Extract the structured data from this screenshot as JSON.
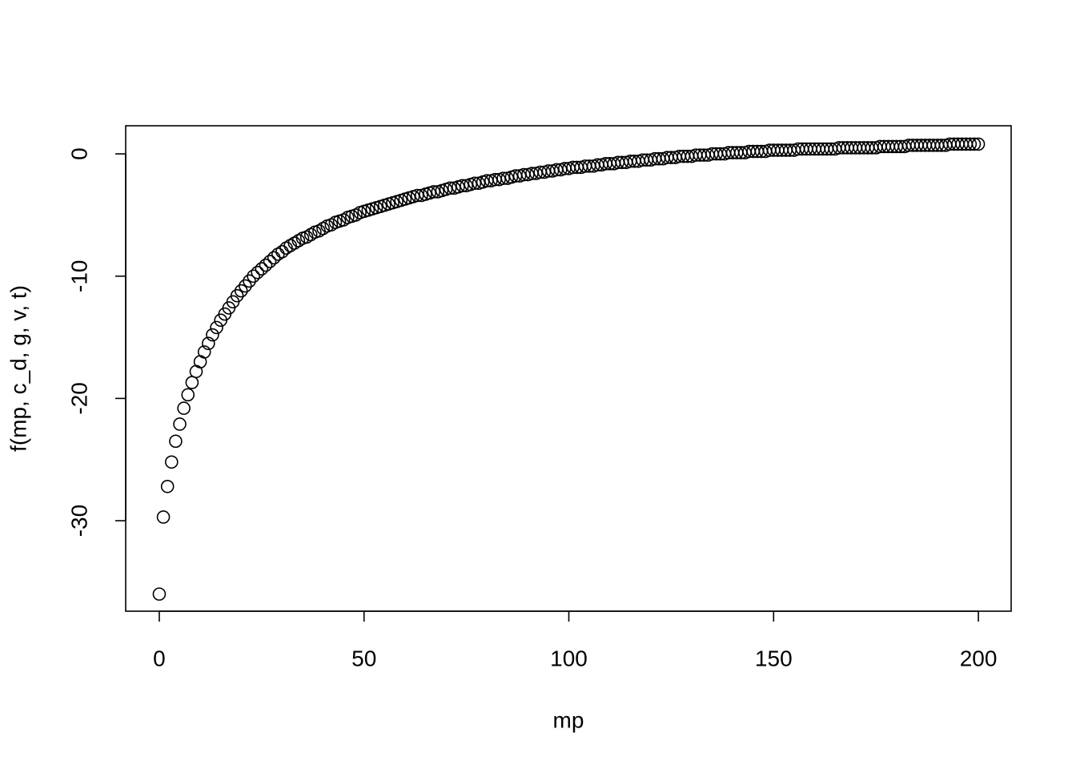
{
  "chart_data": {
    "type": "scatter",
    "x_label": "mp",
    "y_label": "f(mp, c_d, g, v, t)",
    "color": "#000000",
    "xlim": [
      -8.2,
      208.0
    ],
    "ylim": [
      -37.4,
      2.3
    ],
    "xticks": [
      0,
      50,
      100,
      150,
      200
    ],
    "yticks": [
      -30,
      -20,
      -10,
      0
    ],
    "x": [
      0,
      1,
      2,
      3,
      4,
      5,
      6,
      7,
      8,
      9,
      10,
      11,
      12,
      13,
      14,
      15,
      16,
      17,
      18,
      19,
      20,
      21,
      22,
      23,
      24,
      25,
      26,
      27,
      28,
      29,
      30,
      31,
      32,
      33,
      34,
      35,
      36,
      37,
      38,
      39,
      40,
      41,
      42,
      43,
      44,
      45,
      46,
      47,
      48,
      49,
      50,
      51,
      52,
      53,
      54,
      55,
      56,
      57,
      58,
      59,
      60,
      61,
      62,
      63,
      64,
      65,
      66,
      67,
      68,
      69,
      70,
      71,
      72,
      73,
      74,
      75,
      76,
      77,
      78,
      79,
      80,
      81,
      82,
      83,
      84,
      85,
      86,
      87,
      88,
      89,
      90,
      91,
      92,
      93,
      94,
      95,
      96,
      97,
      98,
      99,
      100,
      101,
      102,
      103,
      104,
      105,
      106,
      107,
      108,
      109,
      110,
      111,
      112,
      113,
      114,
      115,
      116,
      117,
      118,
      119,
      120,
      121,
      122,
      123,
      124,
      125,
      126,
      127,
      128,
      129,
      130,
      131,
      132,
      133,
      134,
      135,
      136,
      137,
      138,
      139,
      140,
      141,
      142,
      143,
      144,
      145,
      146,
      147,
      148,
      149,
      150,
      151,
      152,
      153,
      154,
      155,
      156,
      157,
      158,
      159,
      160,
      161,
      162,
      163,
      164,
      165,
      166,
      167,
      168,
      169,
      170,
      171,
      172,
      173,
      174,
      175,
      176,
      177,
      178,
      179,
      180,
      181,
      182,
      183,
      184,
      185,
      186,
      187,
      188,
      189,
      190,
      191,
      192,
      193,
      194,
      195,
      196,
      197,
      198,
      199,
      200
    ],
    "values": [
      -36.0,
      -29.7,
      -27.2,
      -25.2,
      -23.5,
      -22.1,
      -20.8,
      -19.7,
      -18.7,
      -17.8,
      -17.0,
      -16.2,
      -15.5,
      -14.8,
      -14.2,
      -13.6,
      -13.1,
      -12.6,
      -12.1,
      -11.6,
      -11.2,
      -10.8,
      -10.4,
      -10.0,
      -9.7,
      -9.4,
      -9.1,
      -8.8,
      -8.5,
      -8.2,
      -8.0,
      -7.7,
      -7.5,
      -7.3,
      -7.1,
      -6.9,
      -6.8,
      -6.6,
      -6.4,
      -6.3,
      -6.1,
      -5.9,
      -5.8,
      -5.6,
      -5.5,
      -5.4,
      -5.2,
      -5.1,
      -5.0,
      -4.8,
      -4.7,
      -4.6,
      -4.5,
      -4.4,
      -4.3,
      -4.2,
      -4.1,
      -4.0,
      -3.9,
      -3.8,
      -3.7,
      -3.6,
      -3.5,
      -3.4,
      -3.4,
      -3.3,
      -3.2,
      -3.1,
      -3.1,
      -3.0,
      -2.9,
      -2.8,
      -2.8,
      -2.7,
      -2.6,
      -2.6,
      -2.5,
      -2.4,
      -2.4,
      -2.3,
      -2.2,
      -2.2,
      -2.1,
      -2.1,
      -2.0,
      -2.0,
      -1.9,
      -1.8,
      -1.8,
      -1.7,
      -1.7,
      -1.6,
      -1.6,
      -1.5,
      -1.5,
      -1.4,
      -1.4,
      -1.3,
      -1.3,
      -1.2,
      -1.2,
      -1.1,
      -1.1,
      -1.1,
      -1.0,
      -1.0,
      -1.0,
      -0.9,
      -0.9,
      -0.8,
      -0.8,
      -0.8,
      -0.7,
      -0.7,
      -0.7,
      -0.6,
      -0.6,
      -0.6,
      -0.5,
      -0.5,
      -0.5,
      -0.4,
      -0.4,
      -0.4,
      -0.3,
      -0.3,
      -0.3,
      -0.2,
      -0.2,
      -0.2,
      -0.2,
      -0.1,
      -0.1,
      -0.1,
      -0.1,
      0.0,
      0.0,
      0.0,
      0.0,
      0.1,
      0.1,
      0.1,
      0.1,
      0.1,
      0.2,
      0.2,
      0.2,
      0.2,
      0.2,
      0.3,
      0.3,
      0.3,
      0.3,
      0.3,
      0.3,
      0.3,
      0.4,
      0.4,
      0.4,
      0.4,
      0.4,
      0.4,
      0.4,
      0.4,
      0.4,
      0.4,
      0.5,
      0.5,
      0.5,
      0.5,
      0.5,
      0.5,
      0.5,
      0.5,
      0.5,
      0.5,
      0.6,
      0.6,
      0.6,
      0.6,
      0.6,
      0.6,
      0.6,
      0.7,
      0.7,
      0.7,
      0.7,
      0.7,
      0.7,
      0.7,
      0.7,
      0.7,
      0.7,
      0.8,
      0.8,
      0.8,
      0.8,
      0.8,
      0.8,
      0.8,
      0.8
    ]
  }
}
